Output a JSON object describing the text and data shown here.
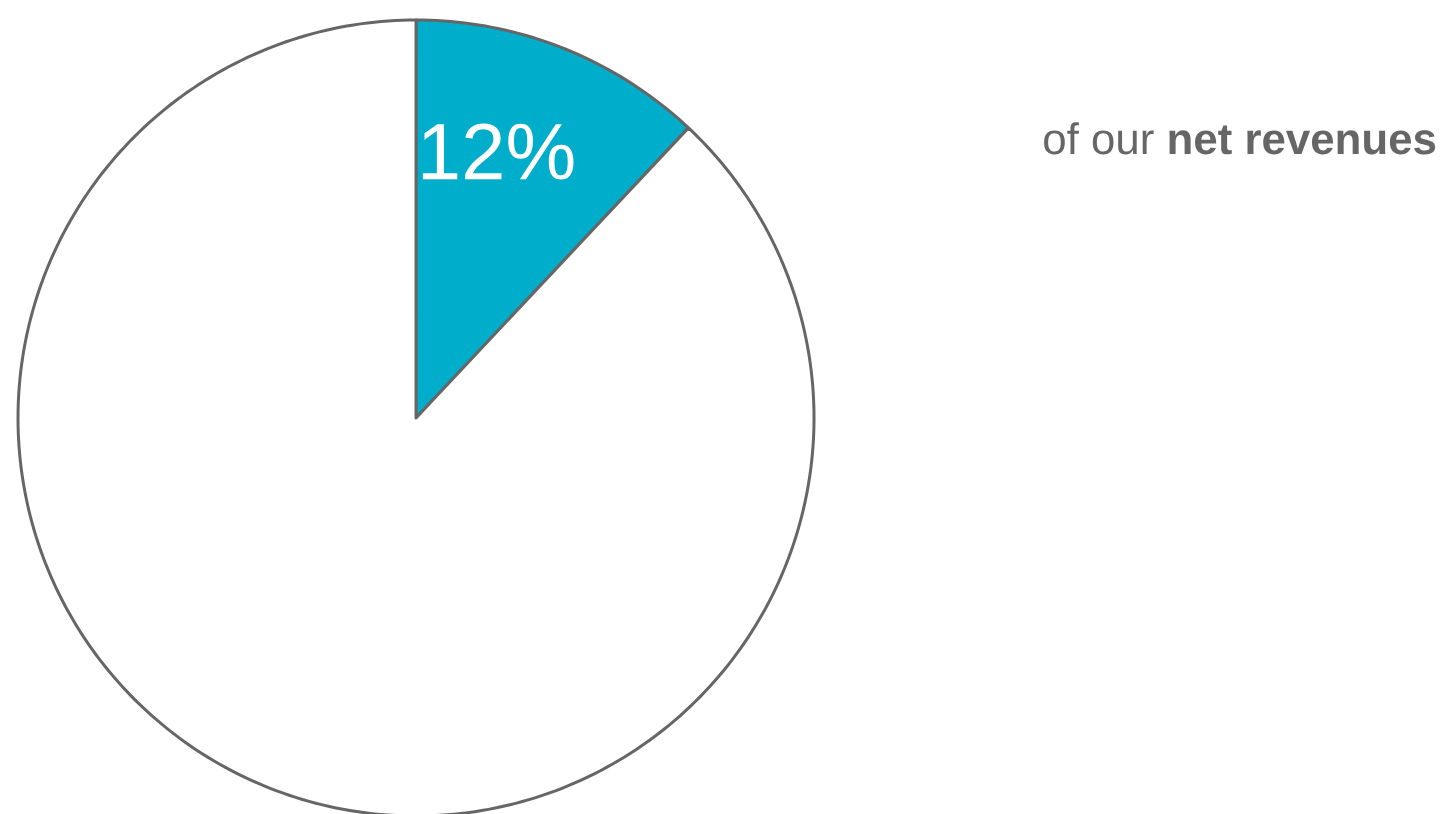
{
  "chart_data": {
    "type": "pie",
    "categories": [
      null,
      null
    ],
    "values": [
      12,
      88
    ],
    "colors": [
      "#00aecb",
      "#ffffff"
    ],
    "value_labels": [
      "12%",
      null
    ],
    "annotations": [
      "of our **net revenues**"
    ]
  }
}
